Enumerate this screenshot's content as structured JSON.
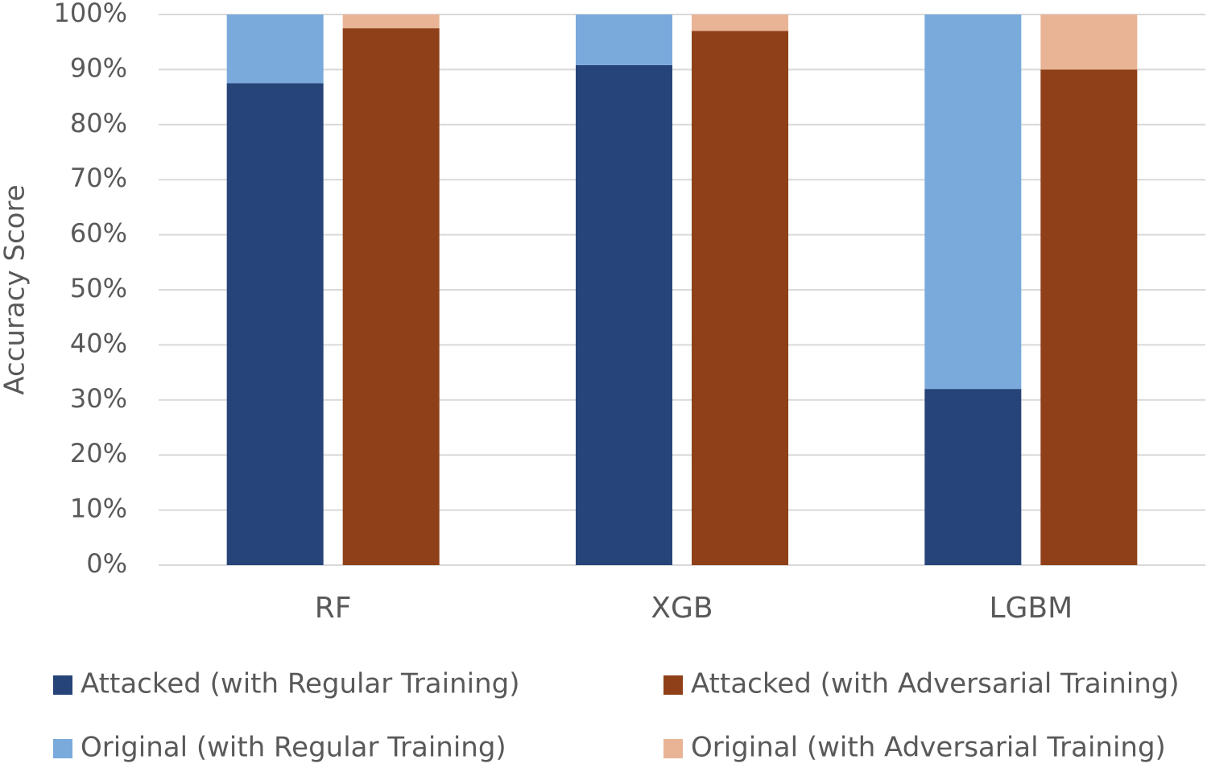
{
  "chart_data": {
    "type": "stacked-bar",
    "y_label": "Accuracy Score",
    "categories": [
      "RF",
      "XGB",
      "LGBM"
    ],
    "series": [
      {
        "name": "Attacked (with Regular Training)",
        "color": "#264478",
        "stack": 0,
        "values": [
          87.5,
          90.8,
          32
        ]
      },
      {
        "name": "Attacked (with Adversarial Training)",
        "color": "#8f4018",
        "stack": 1,
        "values": [
          97.5,
          97,
          90
        ]
      },
      {
        "name": "Original (with Regular Training)",
        "color": "#7aaadc",
        "stack": 0,
        "values": [
          12.5,
          9.2,
          68
        ]
      },
      {
        "name": "Original (with Adversarial Training)",
        "color": "#e9b496",
        "stack": 1,
        "values": [
          2.5,
          3,
          10
        ]
      }
    ],
    "ylim": [
      0,
      100
    ],
    "yticks": [
      {
        "value": 0,
        "label": "0%"
      },
      {
        "value": 10,
        "label": "10%"
      },
      {
        "value": 20,
        "label": "20%"
      },
      {
        "value": 30,
        "label": "30%"
      },
      {
        "value": 40,
        "label": "40%"
      },
      {
        "value": 50,
        "label": "50%"
      },
      {
        "value": 60,
        "label": "60%"
      },
      {
        "value": 70,
        "label": "70%"
      },
      {
        "value": 80,
        "label": "80%"
      },
      {
        "value": 90,
        "label": "90%"
      },
      {
        "value": 100,
        "label": "100%"
      }
    ],
    "grid": true
  }
}
